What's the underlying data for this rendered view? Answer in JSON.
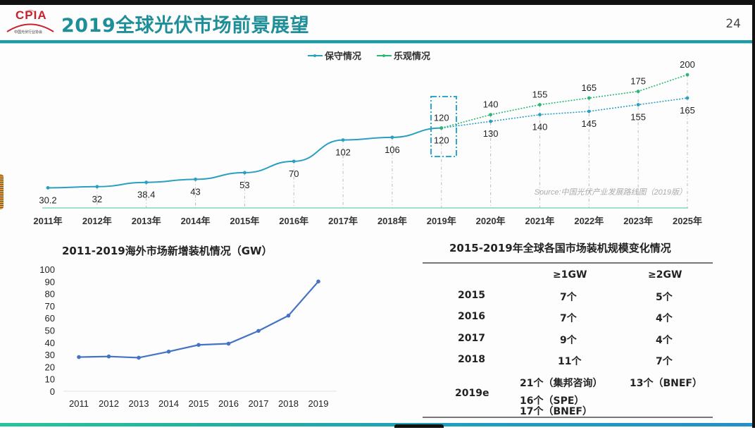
{
  "header": {
    "logo_text": "CPIA",
    "logo_subtext": "中国光伏行业协会",
    "title": "2019全球光伏市场前景展望",
    "page_number": "24"
  },
  "colors": {
    "title": "#1e8f98",
    "conservative": "#2a9fc0",
    "optimistic": "#2bb673",
    "overseas_line": "#4472c4",
    "logo_red": "#c8232c"
  },
  "chart_data": [
    {
      "type": "line",
      "title": "",
      "xlabel": "",
      "ylabel": "",
      "legend_position": "top-center",
      "categories": [
        "2011年",
        "2012年",
        "2013年",
        "2014年",
        "2015年",
        "2016年",
        "2017年",
        "2018年",
        "2019年",
        "2020年",
        "2021年",
        "2022年",
        "2023年",
        "2025年"
      ],
      "series": [
        {
          "name": "保守情况",
          "values": [
            30.2,
            32,
            38.4,
            43,
            53,
            70,
            102,
            106,
            120,
            130,
            140,
            145,
            155,
            165
          ]
        },
        {
          "name": "乐观情况",
          "values": [
            null,
            null,
            null,
            null,
            null,
            null,
            null,
            null,
            120,
            140,
            155,
            165,
            175,
            200
          ]
        }
      ],
      "labels": {
        "conservative": [
          "30.2",
          "32",
          "38.4",
          "43",
          "53",
          "70",
          "102",
          "106",
          "120",
          "130",
          "140",
          "145",
          "155",
          "165"
        ],
        "optimistic": [
          "120",
          "140",
          "155",
          "165",
          "175",
          "200"
        ]
      },
      "ylim": [
        0,
        210
      ],
      "grid": false,
      "annotation": "Source:中国光伏产业发展路线图（2019版）",
      "highlight_category": "2019年"
    },
    {
      "type": "line",
      "title": "2011-2019海外市场新增装机情况（GW）",
      "xlabel": "",
      "ylabel": "",
      "categories": [
        "2011",
        "2012",
        "2013",
        "2014",
        "2015",
        "2016",
        "2017",
        "2018",
        "2019"
      ],
      "series": [
        {
          "name": "海外市场新增装机",
          "values": [
            28,
            28.5,
            27.5,
            32.5,
            38,
            39,
            49.5,
            62,
            90
          ]
        }
      ],
      "yticks": [
        "0",
        "10",
        "20",
        "30",
        "40",
        "50",
        "60",
        "70",
        "80",
        "90",
        "100"
      ],
      "ylim": [
        0,
        100
      ],
      "grid": false
    },
    {
      "type": "table",
      "title": "2015-2019年全球各国市场装机规模变化情况",
      "columns": [
        "",
        "≥1GW",
        "≥2GW"
      ],
      "rows": [
        {
          "year": "2015",
          "ge1": [
            "7个"
          ],
          "ge2": [
            "5个"
          ]
        },
        {
          "year": "2016",
          "ge1": [
            "7个"
          ],
          "ge2": [
            "4个"
          ]
        },
        {
          "year": "2017",
          "ge1": [
            "9个"
          ],
          "ge2": [
            "4个"
          ]
        },
        {
          "year": "2018",
          "ge1": [
            "11个"
          ],
          "ge2": [
            "7个"
          ]
        },
        {
          "year": "2019e",
          "ge1": [
            "21个（集邦咨询）",
            "16个（SPE）",
            "17个（BNEF）"
          ],
          "ge2": [
            "13个（BNEF）"
          ]
        }
      ]
    }
  ]
}
